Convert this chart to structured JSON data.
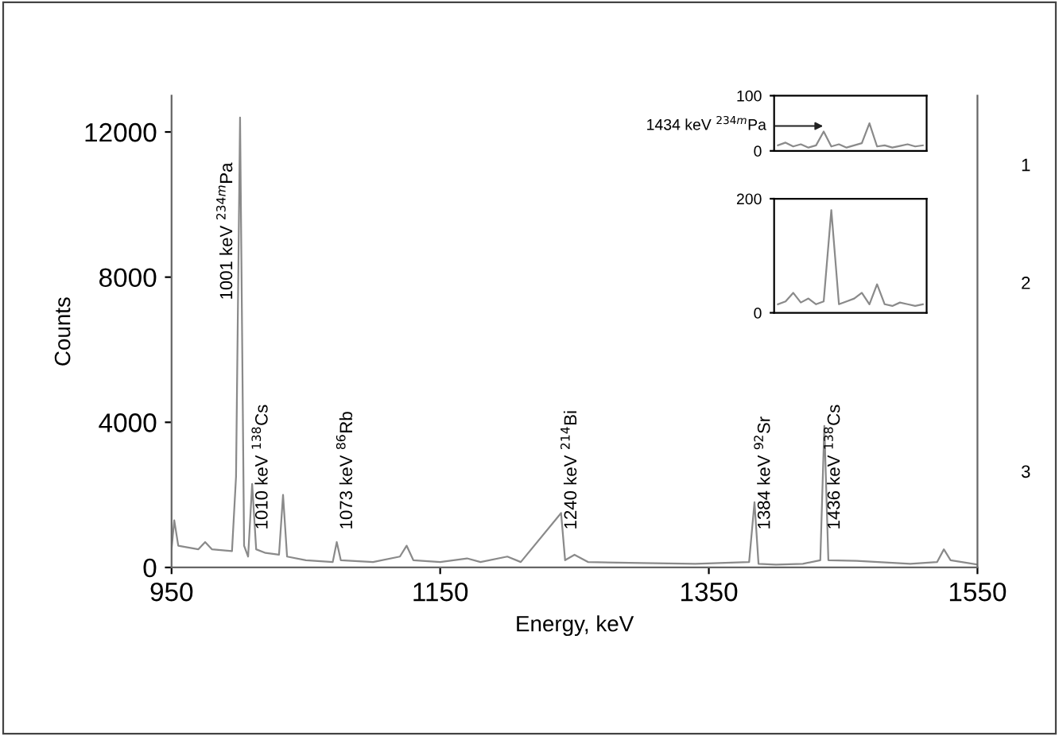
{
  "chart_data": [
    {
      "type": "line",
      "xlabel": "Energy, keV",
      "ylabel": "Counts",
      "xlim": [
        950,
        1550
      ],
      "ylim": [
        0,
        13000
      ],
      "xticks": [
        950,
        1150,
        1350,
        1550
      ],
      "yticks": [
        0,
        4000,
        8000,
        12000
      ],
      "grid": false,
      "legend": false,
      "marker": "none",
      "line_style": "solid",
      "series": [
        {
          "color": "#8a8a8a",
          "x": [
            950,
            952,
            955,
            970,
            975,
            980,
            995,
            998,
            1001,
            1004,
            1007,
            1010,
            1013,
            1020,
            1030,
            1033,
            1036,
            1050,
            1070,
            1073,
            1076,
            1100,
            1120,
            1125,
            1130,
            1150,
            1170,
            1180,
            1200,
            1210,
            1240,
            1243,
            1250,
            1260,
            1300,
            1340,
            1380,
            1384,
            1387,
            1400,
            1420,
            1433,
            1436,
            1439,
            1460,
            1500,
            1520,
            1525,
            1530,
            1550
          ],
          "values": [
            500,
            1300,
            600,
            500,
            700,
            500,
            450,
            2500,
            12400,
            600,
            300,
            2300,
            500,
            400,
            350,
            2000,
            300,
            200,
            150,
            700,
            200,
            150,
            300,
            600,
            200,
            150,
            250,
            150,
            300,
            150,
            1500,
            200,
            350,
            150,
            120,
            100,
            150,
            1800,
            100,
            80,
            100,
            200,
            3900,
            200,
            180,
            100,
            150,
            500,
            200,
            80
          ]
        }
      ],
      "annotations": [
        {
          "text": "1001 keV $^{234m}$Pa",
          "x": 1001,
          "y": 12400
        },
        {
          "text": "1010 keV $^{138}$Cs",
          "x": 1010,
          "y": 2300
        },
        {
          "text": "1073 keV $^{86}$Rb",
          "x": 1073,
          "y": 700
        },
        {
          "text": "1240 keV $^{214}$Bi",
          "x": 1240,
          "y": 1500
        },
        {
          "text": "1384 keV $^{92}$Sr",
          "x": 1384,
          "y": 1800
        },
        {
          "text": "1436 keV $^{138}$Cs",
          "x": 1436,
          "y": 3900
        },
        "1",
        "2",
        "3"
      ]
    },
    {
      "type": "line",
      "ylim": [
        0,
        100
      ],
      "yticks": [
        0,
        100
      ],
      "tick_labels": "y",
      "marker": "none",
      "line_style": "solid",
      "categories": [
        null,
        null,
        null,
        null,
        null,
        null,
        null,
        null,
        null,
        null,
        null,
        null,
        null,
        null,
        null,
        null,
        null,
        null,
        null,
        null
      ],
      "series": [
        {
          "color": "#8a8a8a",
          "values": [
            10,
            15,
            8,
            12,
            6,
            10,
            35,
            8,
            12,
            6,
            10,
            14,
            50,
            8,
            10,
            6,
            9,
            12,
            8,
            10
          ]
        }
      ],
      "annotations": [
        "1434 keV $^{234m}$Pa"
      ]
    },
    {
      "type": "line",
      "ylim": [
        0,
        200
      ],
      "yticks": [
        0,
        200
      ],
      "tick_labels": "y",
      "marker": "none",
      "line_style": "solid",
      "categories": [
        null,
        null,
        null,
        null,
        null,
        null,
        null,
        null,
        null,
        null,
        null,
        null,
        null,
        null,
        null,
        null,
        null,
        null,
        null,
        null
      ],
      "series": [
        {
          "color": "#8a8a8a",
          "values": [
            15,
            20,
            35,
            18,
            25,
            15,
            20,
            180,
            15,
            20,
            25,
            35,
            15,
            50,
            15,
            12,
            18,
            15,
            12,
            15
          ]
        }
      ]
    }
  ]
}
